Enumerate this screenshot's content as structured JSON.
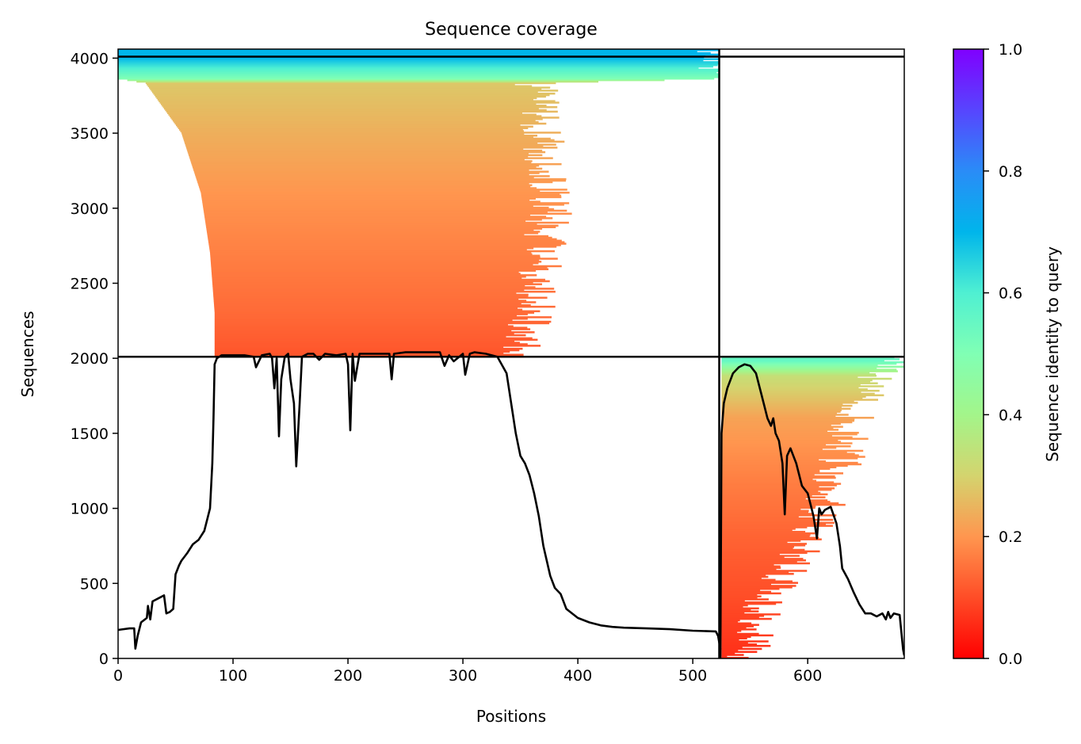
{
  "chart_data": {
    "type": "heatmap",
    "title": "Sequence coverage",
    "xlabel": "Positions",
    "ylabel": "Sequences",
    "xlim": [
      0,
      684
    ],
    "ylim": [
      0,
      4060
    ],
    "xticks": [
      0,
      100,
      200,
      300,
      400,
      500,
      600
    ],
    "yticks": [
      0,
      500,
      1000,
      1500,
      2000,
      2500,
      3000,
      3500,
      4000
    ],
    "grid": false,
    "separators": {
      "vertical_x": 523,
      "horizontal_y": [
        2010,
        4010
      ]
    },
    "colorbar": {
      "label": "Sequence identity to query",
      "ticks": [
        "0.0",
        "0.2",
        "0.4",
        "0.6",
        "0.8",
        "1.0"
      ],
      "range": [
        0,
        1
      ],
      "colormap": "rainbow_r"
    },
    "blocks": [
      {
        "name": "paired",
        "rows_from": 2010,
        "rows_to": 4060,
        "coverage_profile": [
          {
            "y": 2010,
            "x0": 84,
            "x1": 350,
            "identity": 0.11
          },
          {
            "y": 2300,
            "x0": 84,
            "x1": 360,
            "identity": 0.14
          },
          {
            "y": 2700,
            "x0": 80,
            "x1": 370,
            "identity": 0.17
          },
          {
            "y": 3100,
            "x0": 72,
            "x1": 378,
            "identity": 0.2
          },
          {
            "y": 3500,
            "x0": 55,
            "x1": 370,
            "identity": 0.24
          },
          {
            "y": 3830,
            "x0": 24,
            "x1": 362,
            "identity": 0.28
          },
          {
            "y": 3860,
            "x0": 0,
            "x1": 523,
            "identity": 0.5
          },
          {
            "y": 4000,
            "x0": 0,
            "x1": 523,
            "identity": 0.7
          }
        ]
      },
      {
        "name": "unpaired",
        "rows_from": 0,
        "rows_to": 2010,
        "coverage_profile": [
          {
            "y": 0,
            "x0": 525,
            "x1": 548,
            "identity": 0.06
          },
          {
            "y": 400,
            "x0": 525,
            "x1": 565,
            "identity": 0.1
          },
          {
            "y": 800,
            "x0": 525,
            "x1": 600,
            "identity": 0.13
          },
          {
            "y": 1200,
            "x0": 525,
            "x1": 625,
            "identity": 0.17
          },
          {
            "y": 1600,
            "x0": 525,
            "x1": 640,
            "identity": 0.22
          },
          {
            "y": 1880,
            "x0": 525,
            "x1": 660,
            "identity": 0.33
          },
          {
            "y": 1980,
            "x0": 525,
            "x1": 684,
            "identity": 0.55
          }
        ]
      }
    ],
    "series": [
      {
        "type": "line",
        "x": [
          0,
          10,
          14,
          15,
          17,
          20,
          25,
          26,
          28,
          30,
          35,
          40,
          42,
          45,
          48,
          50,
          53,
          55,
          60,
          65,
          70,
          75,
          80,
          82,
          83,
          84,
          86,
          90,
          100,
          110,
          118,
          120,
          125,
          132,
          134,
          136,
          138,
          140,
          142,
          145,
          148,
          150,
          153,
          155,
          158,
          160,
          165,
          170,
          175,
          180,
          190,
          198,
          200,
          202,
          204,
          206,
          210,
          220,
          230,
          236,
          238,
          240,
          250,
          260,
          270,
          280,
          284,
          288,
          292,
          300,
          302,
          306,
          310,
          320,
          330,
          338,
          342,
          346,
          350,
          354,
          358,
          362,
          366,
          370,
          376,
          380,
          385,
          390,
          400,
          410,
          420,
          430,
          440,
          460,
          480,
          500,
          520,
          522,
          524
        ],
        "y": [
          190,
          200,
          200,
          65,
          150,
          240,
          270,
          350,
          260,
          380,
          400,
          420,
          300,
          310,
          330,
          560,
          620,
          650,
          700,
          760,
          790,
          850,
          1000,
          1300,
          1600,
          1960,
          2000,
          2020,
          2020,
          2020,
          2010,
          1940,
          2020,
          2030,
          2000,
          1800,
          2000,
          1480,
          1860,
          2010,
          2030,
          1860,
          1700,
          1280,
          1700,
          2010,
          2030,
          2030,
          1990,
          2030,
          2020,
          2030,
          1960,
          1520,
          2030,
          1850,
          2030,
          2030,
          2030,
          2030,
          1860,
          2030,
          2040,
          2040,
          2040,
          2040,
          1950,
          2020,
          1980,
          2030,
          1890,
          2030,
          2040,
          2030,
          2010,
          1900,
          1700,
          1500,
          1350,
          1300,
          1220,
          1100,
          950,
          750,
          550,
          470,
          430,
          330,
          270,
          240,
          220,
          210,
          205,
          200,
          195,
          185,
          180,
          150,
          60
        ]
      },
      {
        "type": "line",
        "x": [
          524,
          525,
          527,
          530,
          535,
          540,
          545,
          550,
          555,
          560,
          565,
          568,
          570,
          572,
          575,
          578,
          580,
          582,
          585,
          590,
          595,
          600,
          605,
          608,
          610,
          612,
          615,
          620,
          625,
          628,
          630,
          635,
          640,
          645,
          650,
          655,
          660,
          665,
          668,
          670,
          672,
          675,
          680,
          683,
          684
        ],
        "y": [
          0,
          1500,
          1700,
          1800,
          1900,
          1940,
          1960,
          1950,
          1900,
          1750,
          1600,
          1550,
          1600,
          1500,
          1450,
          1300,
          960,
          1350,
          1400,
          1300,
          1150,
          1100,
          950,
          800,
          1000,
          960,
          990,
          1010,
          900,
          750,
          600,
          530,
          440,
          360,
          300,
          300,
          280,
          300,
          260,
          310,
          270,
          300,
          290,
          60,
          20
        ]
      }
    ]
  }
}
